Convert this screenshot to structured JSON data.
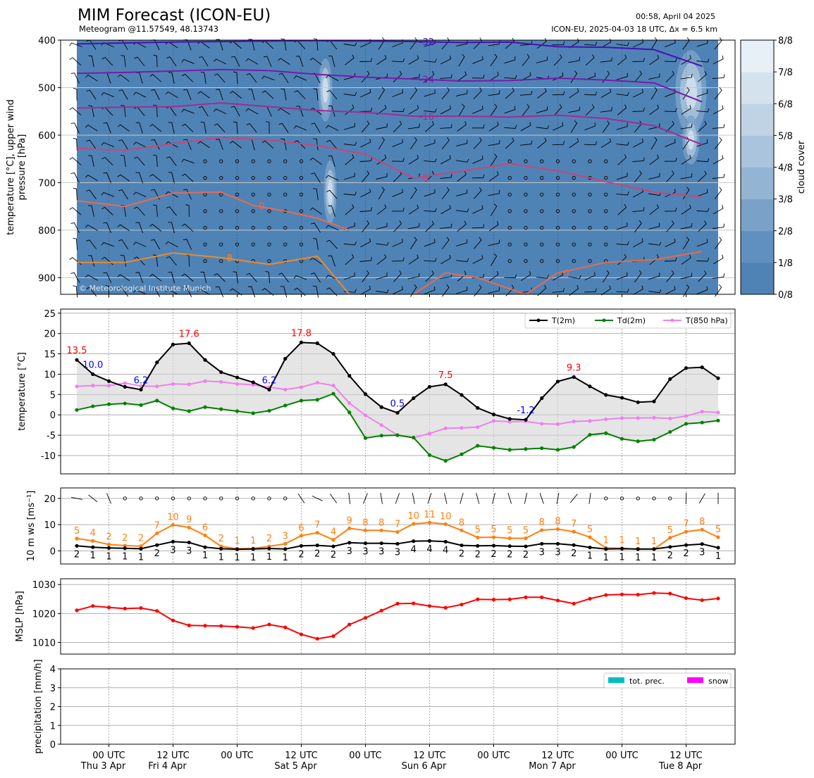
{
  "header": {
    "title": "MIM Forecast (ICON-EU)",
    "subtitle": "Meteogram @11.57549, 48.13743",
    "issued": "00:58, April 04 2025",
    "run": "ICON-EU, 2025-04-03 18 UTC, Δx = 6.5 km",
    "copyright": "© Meteorological Institute Munich"
  },
  "colors": {
    "t2m": "#000000",
    "td2m": "#008000",
    "t850": "#ee82ee",
    "wind_gust": "#ff7f0e",
    "wind_mean": "#000000",
    "mslp": "#ff0000",
    "tot_prec": "#00bfbf",
    "snow": "#ff00ff",
    "cloud_base": "#4f83b6",
    "label_max": "#ff0000",
    "label_min": "#0000ff"
  },
  "time_axis": {
    "ticks": [
      {
        "label": "00 UTC",
        "day": "Thu 3 Apr"
      },
      {
        "label": "12 UTC",
        "day": "Fri 4 Apr"
      },
      {
        "label": "00 UTC",
        "day": ""
      },
      {
        "label": "12 UTC",
        "day": "Sat 5 Apr"
      },
      {
        "label": "00 UTC",
        "day": ""
      },
      {
        "label": "12 UTC",
        "day": "Sun 6 Apr"
      },
      {
        "label": "00 UTC",
        "day": ""
      },
      {
        "label": "12 UTC",
        "day": "Mon 7 Apr"
      },
      {
        "label": "00 UTC",
        "day": ""
      },
      {
        "label": "12 UTC",
        "day": "Tue 8 Apr"
      }
    ]
  },
  "chart_data": [
    {
      "type": "heatmap",
      "panel": "upper",
      "ylabel": "temperature [°C], upper wind\npressure [hPa]",
      "y_ticks": [
        400,
        500,
        600,
        700,
        800,
        900
      ],
      "ylim": [
        935,
        400
      ],
      "colorbar": {
        "label": "cloud cover",
        "ticks": [
          "0/8",
          "1/8",
          "2/8",
          "3/8",
          "4/8",
          "5/8",
          "6/8",
          "7/8",
          "8/8"
        ],
        "colors": [
          "#4f83b6",
          "#6090c0",
          "#7aa2c9",
          "#93b4d2",
          "#a9c4dc",
          "#bfd3e5",
          "#d4e2ee",
          "#e8f0f7"
        ]
      },
      "isotherms": [
        {
          "label": "-32",
          "color": "#4b0fb4",
          "x": [
            0,
            3,
            6,
            9,
            12,
            15,
            18,
            21,
            24,
            27,
            30,
            33,
            36,
            39
          ],
          "p": [
            408,
            406,
            404,
            403,
            402,
            401,
            402,
            403,
            405,
            404,
            414,
            415,
            420,
            455
          ]
        },
        {
          "label": "-24",
          "color": "#7b1aa8",
          "x": [
            0,
            3,
            6,
            9,
            12,
            15,
            18,
            21,
            24,
            27,
            30,
            33,
            36,
            39
          ],
          "p": [
            470,
            468,
            465,
            462,
            464,
            472,
            478,
            482,
            486,
            485,
            480,
            484,
            490,
            530
          ]
        },
        {
          "label": "-16",
          "color": "#a02c92",
          "x": [
            0,
            3,
            6,
            9,
            12,
            15,
            18,
            21,
            24,
            27,
            30,
            33,
            36,
            39
          ],
          "p": [
            543,
            541,
            540,
            532,
            540,
            548,
            552,
            560,
            560,
            562,
            558,
            565,
            580,
            620
          ]
        },
        {
          "label": "-8",
          "color": "#c74679",
          "x": [
            0,
            3,
            6,
            9,
            12,
            15,
            18,
            21,
            24,
            27,
            30,
            33,
            36,
            39
          ],
          "p": [
            628,
            632,
            618,
            605,
            610,
            622,
            640,
            690,
            676,
            660,
            675,
            698,
            720,
            730
          ]
        },
        {
          "label": "0",
          "color": "#e86a50",
          "x": [
            0,
            3,
            6,
            9,
            11,
            13,
            15,
            17
          ],
          "p": [
            738,
            750,
            722,
            720,
            748,
            760,
            775,
            800
          ]
        },
        {
          "label": "8",
          "color": "#ee8a2a",
          "x": [
            0,
            3,
            6,
            9,
            12,
            15,
            17
          ],
          "p": [
            868,
            868,
            848,
            858,
            872,
            855,
            935
          ]
        },
        {
          "label": "0",
          "color": "#e86a50",
          "x": [
            21,
            23,
            25,
            28,
            30,
            33,
            36,
            39
          ],
          "p": [
            935,
            890,
            900,
            935,
            890,
            868,
            862,
            845
          ]
        }
      ]
    },
    {
      "type": "line",
      "panel": "temperature",
      "ylabel": "temperature [°C]",
      "ylim": [
        -14.5,
        26
      ],
      "y_ticks": [
        -10,
        -5,
        0,
        5,
        10,
        15,
        20,
        25
      ],
      "legend": [
        "T(2m)",
        "Td(2m)",
        "T(850 hPa)"
      ],
      "series": [
        {
          "name": "T(2m)",
          "values": [
            13.5,
            10.0,
            8.3,
            6.9,
            6.2,
            12.9,
            17.3,
            17.6,
            13.5,
            10.5,
            9.2,
            8.0,
            6.2,
            13.8,
            17.8,
            17.6,
            15.0,
            9.6,
            5.1,
            1.9,
            0.5,
            4.1,
            6.9,
            7.5,
            4.9,
            1.7,
            0.1,
            -1.0,
            -1.2,
            4.1,
            8.2,
            9.3,
            7.0,
            4.9,
            4.2,
            3.1,
            3.3,
            8.8,
            11.5,
            11.7,
            9.0
          ]
        },
        {
          "name": "Td(2m)",
          "values": [
            1.2,
            2.1,
            2.6,
            2.8,
            2.4,
            3.5,
            1.6,
            0.9,
            1.9,
            1.4,
            0.9,
            0.4,
            1.0,
            2.3,
            3.5,
            3.7,
            5.2,
            0.6,
            -5.7,
            -5.1,
            -5.0,
            -5.6,
            -9.9,
            -11.3,
            -9.7,
            -7.6,
            -8.1,
            -8.6,
            -8.4,
            -8.2,
            -8.6,
            -7.9,
            -4.9,
            -4.5,
            -5.9,
            -6.5,
            -6.1,
            -4.2,
            -2.2,
            -1.9,
            -1.4
          ]
        },
        {
          "name": "T(850 hPa)",
          "values": [
            7.0,
            7.2,
            7.2,
            7.8,
            7.1,
            7.0,
            7.6,
            7.5,
            8.3,
            8.1,
            7.6,
            7.4,
            6.8,
            6.2,
            6.8,
            7.9,
            7.2,
            2.9,
            -0.1,
            -2.5,
            -5.0,
            -5.6,
            -4.6,
            -3.3,
            -3.2,
            -3.0,
            -1.5,
            -1.7,
            -1.6,
            -2.2,
            -2.3,
            -1.6,
            -1.5,
            -1.1,
            -0.8,
            -0.8,
            -0.7,
            -0.9,
            -0.3,
            0.8,
            0.6
          ]
        }
      ],
      "annotations": [
        {
          "i": 0,
          "text": "13.5",
          "kind": "max"
        },
        {
          "i": 1,
          "text": "10.0",
          "kind": "min"
        },
        {
          "i": 4,
          "text": "6.2",
          "kind": "min"
        },
        {
          "i": 7,
          "text": "17.6",
          "kind": "max"
        },
        {
          "i": 12,
          "text": "6.2",
          "kind": "min"
        },
        {
          "i": 14,
          "text": "17.8",
          "kind": "max"
        },
        {
          "i": 20,
          "text": "0.5",
          "kind": "min"
        },
        {
          "i": 23,
          "text": "7.5",
          "kind": "max"
        },
        {
          "i": 28,
          "text": "-1.2",
          "kind": "min"
        },
        {
          "i": 31,
          "text": "9.3",
          "kind": "max"
        }
      ]
    },
    {
      "type": "line",
      "panel": "wind",
      "ylabel": "10 m ws [ms⁻¹]",
      "ylim": [
        -5,
        24
      ],
      "y_ticks": [
        0,
        10,
        20
      ],
      "series": [
        {
          "name": "gust",
          "values": [
            4.7,
            3.8,
            2.4,
            2.0,
            1.8,
            6.7,
            9.9,
            8.9,
            5.9,
            1.7,
            0.8,
            0.9,
            1.7,
            2.7,
            5.8,
            6.9,
            4.2,
            8.6,
            7.8,
            7.8,
            7.2,
            10.3,
            10.8,
            10.2,
            7.8,
            5.1,
            5.2,
            4.8,
            4.8,
            7.9,
            8.3,
            7.3,
            5.2,
            1.1,
            1.0,
            0.6,
            0.6,
            5.0,
            7.3,
            8.1,
            5.2
          ]
        },
        {
          "name": "mean",
          "values": [
            1.9,
            1.4,
            1.1,
            1.0,
            0.8,
            2.2,
            3.5,
            3.2,
            1.4,
            0.8,
            0.6,
            0.7,
            0.9,
            0.7,
            1.9,
            2.1,
            1.7,
            3.1,
            2.9,
            2.9,
            2.7,
            3.7,
            3.8,
            3.5,
            2.1,
            1.9,
            2.0,
            1.8,
            1.7,
            2.7,
            2.7,
            2.2,
            1.3,
            0.7,
            0.8,
            0.7,
            0.7,
            1.5,
            2.2,
            2.6,
            1.2
          ]
        }
      ],
      "gust_labels": [
        "5",
        "4",
        "2",
        "2",
        "2",
        "7",
        "10",
        "9",
        "6",
        "2",
        "1",
        "1",
        "2",
        "3",
        "6",
        "7",
        "4",
        "9",
        "8",
        "8",
        "7",
        "10",
        "11",
        "10",
        "8",
        "5",
        "5",
        "5",
        "5",
        "8",
        "8",
        "7",
        "5",
        "1",
        "1",
        "1",
        "1",
        "5",
        "7",
        "8",
        "5"
      ],
      "mean_labels": [
        "2",
        "1",
        "1",
        "1",
        "1",
        "2",
        "3",
        "3",
        "1",
        "1",
        "1",
        "1",
        "1",
        "1",
        "2",
        "2",
        "2",
        "3",
        "3",
        "3",
        "3",
        "4",
        "4",
        "4",
        "2",
        "2",
        "2",
        "2",
        "2",
        "3",
        "3",
        "2",
        "1",
        "1",
        "1",
        "1",
        "1",
        "2",
        "2",
        "3",
        "1"
      ]
    },
    {
      "type": "line",
      "panel": "mslp",
      "ylabel": "MSLP [hPa]",
      "ylim": [
        1006,
        1032
      ],
      "y_ticks": [
        1010,
        1020,
        1030
      ],
      "series": [
        {
          "name": "MSLP",
          "values": [
            1021.1,
            1022.6,
            1022.1,
            1021.7,
            1021.9,
            1020.9,
            1017.6,
            1015.9,
            1015.8,
            1015.7,
            1015.4,
            1015.0,
            1016.2,
            1015.2,
            1012.8,
            1011.3,
            1012.2,
            1016.2,
            1018.5,
            1021.0,
            1023.4,
            1023.5,
            1022.6,
            1022.0,
            1023.1,
            1024.9,
            1024.8,
            1024.9,
            1025.6,
            1025.6,
            1024.5,
            1023.4,
            1025.1,
            1026.4,
            1026.6,
            1026.5,
            1027.1,
            1026.9,
            1025.3,
            1024.6,
            1025.2
          ]
        }
      ]
    },
    {
      "type": "bar",
      "panel": "precipitation",
      "ylabel": "precipitation [mm/h]",
      "ylim": [
        0,
        4
      ],
      "y_ticks": [
        0,
        1,
        2,
        3,
        4
      ],
      "legend": [
        "tot. prec.",
        "snow"
      ],
      "series": [
        {
          "name": "tot. prec.",
          "values": []
        },
        {
          "name": "snow",
          "values": []
        }
      ]
    }
  ]
}
